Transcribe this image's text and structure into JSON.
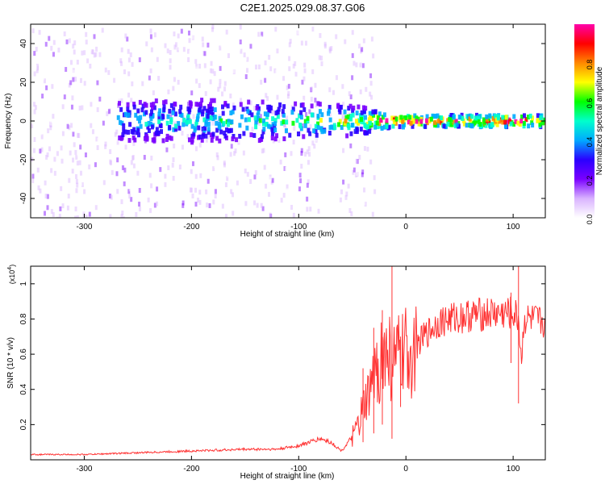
{
  "title": "C2E1.2025.029.08.37.G06",
  "chart_data": [
    {
      "type": "heatmap",
      "xlabel": "Height of straight line (km)",
      "ylabel": "Frequency (Hz)",
      "xlim": [
        -350,
        130
      ],
      "ylim": [
        -50,
        50
      ],
      "xticks": [
        -300,
        -200,
        -100,
        0,
        100
      ],
      "yticks": [
        -40,
        -20,
        0,
        20,
        40
      ],
      "colorbar": {
        "label": "Normalized spectral amplitude",
        "range": [
          0.0,
          1.0
        ],
        "ticks": [
          "0.0",
          "0.2",
          "0.4",
          "0.6",
          "0.8"
        ],
        "colors": [
          "#ffffff",
          "#d9b3ff",
          "#7a00ff",
          "#2a00ff",
          "#00aaff",
          "#00ffcc",
          "#00ff00",
          "#ffff00",
          "#ff8800",
          "#ff0000",
          "#ff00aa"
        ]
      },
      "ridge": [
        {
          "x": -270,
          "width_hz": 10,
          "amplitude": 0.3
        },
        {
          "x": -200,
          "width_hz": 11,
          "amplitude": 0.35
        },
        {
          "x": -130,
          "width_hz": 10,
          "amplitude": 0.4
        },
        {
          "x": -80,
          "width_hz": 9,
          "amplitude": 0.5
        },
        {
          "x": -40,
          "width_hz": 7,
          "amplitude": 0.55
        },
        {
          "x": -25,
          "width_hz": 4,
          "amplitude": 0.9
        },
        {
          "x": 0,
          "width_hz": 3,
          "amplitude": 0.85
        },
        {
          "x": 50,
          "width_hz": 3,
          "amplitude": 0.75
        },
        {
          "x": 100,
          "width_hz": 3,
          "amplitude": 0.85
        },
        {
          "x": 130,
          "width_hz": 3,
          "amplitude": 0.75
        }
      ],
      "background_noise": {
        "x_range": [
          -350,
          -30
        ],
        "amplitude": 0.15
      }
    },
    {
      "type": "line",
      "xlabel": "Height of straight line (km)",
      "ylabel": "SNR (10 * v/v)",
      "multiplier_label": "(x10^4)",
      "multiplier_base": "(x10",
      "multiplier_exp": "4",
      "multiplier_close": ")",
      "xlim": [
        -350,
        130
      ],
      "ylim": [
        0,
        1.1
      ],
      "xticks": [
        -300,
        -200,
        -100,
        0,
        100
      ],
      "yticks": [
        0.2,
        0.4,
        0.6,
        0.8,
        1
      ],
      "series": [
        {
          "color": "#ff3333",
          "x": [
            -350,
            -300,
            -250,
            -200,
            -150,
            -120,
            -100,
            -80,
            -70,
            -60,
            -50,
            -45,
            -40,
            -35,
            -30,
            -25,
            -20,
            -15,
            -10,
            -5,
            0,
            10,
            20,
            30,
            40,
            60,
            80,
            100,
            105,
            108,
            110,
            120,
            130
          ],
          "y": [
            0.03,
            0.03,
            0.04,
            0.05,
            0.06,
            0.06,
            0.08,
            0.12,
            0.1,
            0.05,
            0.13,
            0.18,
            0.28,
            0.35,
            0.45,
            0.55,
            0.6,
            0.58,
            0.55,
            0.58,
            0.6,
            0.65,
            0.72,
            0.78,
            0.8,
            0.82,
            0.83,
            0.83,
            0.8,
            0.55,
            0.8,
            0.79,
            0.78
          ],
          "spikes": [
            {
              "x": -40,
              "y_low": 0.1,
              "y_high": 0.52
            },
            {
              "x": -30,
              "y_low": 0.15,
              "y_high": 0.75
            },
            {
              "x": -22,
              "y_low": 0.2,
              "y_high": 0.85
            },
            {
              "x": -13,
              "y_low": 0.12,
              "y_high": 1.1
            },
            {
              "x": -5,
              "y_low": 0.3,
              "y_high": 0.7
            },
            {
              "x": 98,
              "y_low": 0.55,
              "y_high": 0.95
            },
            {
              "x": 105,
              "y_low": 0.32,
              "y_high": 1.15
            }
          ]
        }
      ]
    }
  ]
}
